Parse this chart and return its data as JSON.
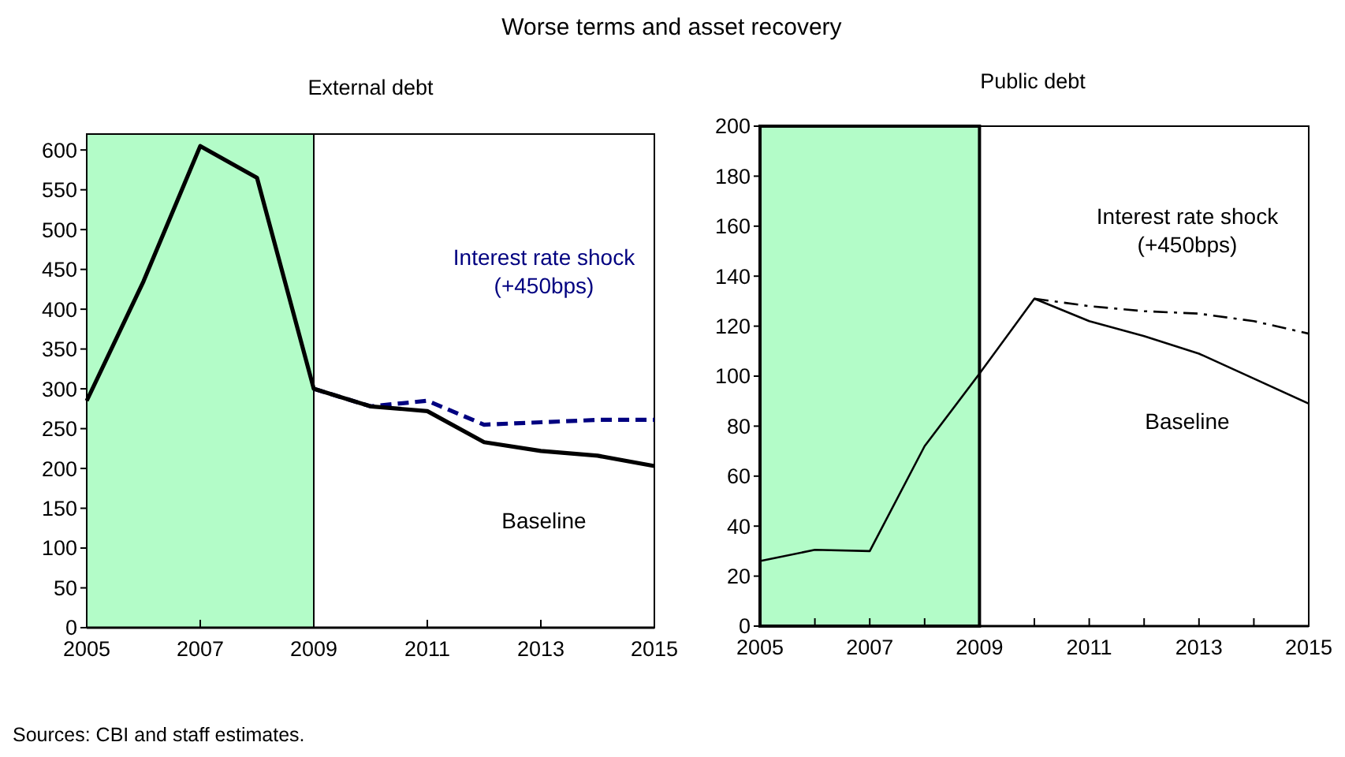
{
  "chart_data": [
    {
      "type": "line",
      "title": "Worse terms and asset recovery",
      "subtitle": "External debt",
      "x": [
        2005,
        2006,
        2007,
        2008,
        2009,
        2010,
        2011,
        2012,
        2013,
        2014,
        2015
      ],
      "xlim": [
        2005,
        2015
      ],
      "xticks": [
        2005,
        2007,
        2009,
        2011,
        2013,
        2015
      ],
      "ylim": [
        0,
        620
      ],
      "yticks": [
        0,
        50,
        100,
        150,
        200,
        250,
        300,
        350,
        400,
        450,
        500,
        550,
        600
      ],
      "grid": false,
      "annotations": [
        "Sources: CBI and staff estimates."
      ],
      "bands": [
        {
          "axis": "x",
          "from": 2005,
          "to": 2009,
          "color": "#b3fcc8"
        }
      ],
      "series": [
        {
          "name": "Interest rate shock\n(+450bps)",
          "color": "#000080",
          "line_style": "dashed",
          "x": [
            2009,
            2010,
            2011,
            2012,
            2013,
            2014,
            2015
          ],
          "values": [
            300,
            278,
            285,
            255,
            258,
            261,
            261
          ]
        },
        {
          "name": "Baseline",
          "color": "#000000",
          "line_style": "solid",
          "values": [
            285,
            435,
            605,
            565,
            300,
            278,
            272,
            233,
            222,
            216,
            203
          ]
        }
      ]
    },
    {
      "type": "line",
      "subtitle": "Public debt",
      "x": [
        2005,
        2006,
        2007,
        2008,
        2009,
        2010,
        2011,
        2012,
        2013,
        2014,
        2015
      ],
      "xlim": [
        2005,
        2015
      ],
      "xticks": [
        2005,
        {
          "value": 2006,
          "label": null
        },
        2007,
        {
          "value": 2008,
          "label": null
        },
        2009,
        {
          "value": 2010,
          "label": null
        },
        2011,
        {
          "value": 2012,
          "label": null
        },
        2013,
        {
          "value": 2014,
          "label": null
        },
        2015
      ],
      "ylim": [
        0,
        200
      ],
      "yticks": [
        0,
        20,
        40,
        60,
        80,
        100,
        120,
        140,
        160,
        180,
        200
      ],
      "grid": false,
      "bands": [
        {
          "axis": "x",
          "from": 2005,
          "to": 2009,
          "color": "#b3fcc8"
        }
      ],
      "series": [
        {
          "name": "Interest rate shock\n(+450bps)",
          "color": "#000000",
          "line_style": "dashed",
          "x": [
            2010,
            2011,
            2012,
            2013,
            2014,
            2015
          ],
          "values": [
            131,
            128,
            126,
            125,
            122,
            117
          ]
        },
        {
          "name": "Baseline",
          "color": "#000000",
          "line_style": "solid",
          "values": [
            26,
            30.5,
            30,
            72,
            101,
            131,
            122,
            116,
            109,
            99,
            89
          ]
        }
      ]
    }
  ]
}
